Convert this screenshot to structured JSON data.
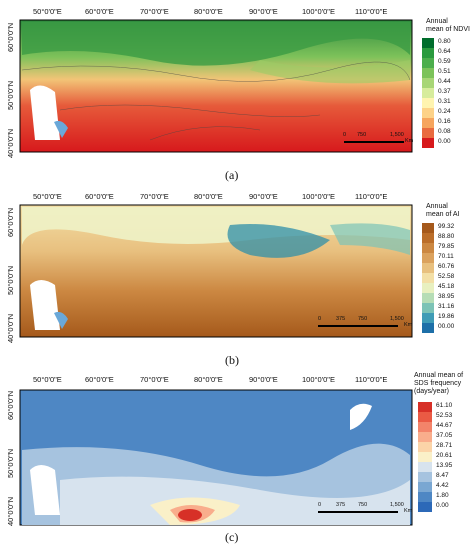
{
  "longitudes": [
    "50°0'0\"E",
    "60°0'0\"E",
    "70°0'0\"E",
    "80°0'0\"E",
    "90°0'0\"E",
    "100°0'0\"E",
    "110°0'0\"E"
  ],
  "latitudes": [
    "60°0'0\"N",
    "50°0'0\"N",
    "40°0'0\"N"
  ],
  "scale": {
    "ticks": [
      "0",
      "375",
      "750",
      "1,500"
    ],
    "unit": "Km",
    "ticks_a": [
      "0",
      "750",
      "1,500"
    ],
    "unit_a": "Km"
  },
  "panels": [
    {
      "id": "a",
      "label": "(a)",
      "legend_title_lines": [
        "Annual",
        "mean of NDVI"
      ],
      "legend_values": [
        "0.80",
        "0.64",
        "0.59",
        "0.51",
        "0.44",
        "0.37",
        "0.31",
        "0.24",
        "0.16",
        "0.08",
        "0.00"
      ],
      "legend_colors": [
        "#006d2c",
        "#2a9a3e",
        "#4cae4c",
        "#7cc35a",
        "#a8d676",
        "#d7ec9c",
        "#fff4b0",
        "#fdd288",
        "#f6a55e",
        "#e96b3f",
        "#d7191c"
      ]
    },
    {
      "id": "b",
      "label": "(b)",
      "legend_title_lines": [
        "Annual",
        "mean of AI"
      ],
      "legend_values": [
        "99.32",
        "88.80",
        "79.85",
        "70.11",
        "60.76",
        "52.58",
        "45.18",
        "38.95",
        "31.16",
        "19.86",
        "00.00"
      ],
      "legend_colors": [
        "#a5591b",
        "#bb6e2a",
        "#cc8842",
        "#dba25e",
        "#e8c07f",
        "#f3dfa6",
        "#e8f0c0",
        "#b6ddb6",
        "#7cc3b6",
        "#3f9cb6",
        "#1d6fa8"
      ]
    },
    {
      "id": "c",
      "label": "(c)",
      "legend_title_lines": [
        "Annual mean of",
        "SDS frequency",
        "(days/year)"
      ],
      "legend_values": [
        "61.10",
        "52.53",
        "44.67",
        "37.05",
        "28.71",
        "20.61",
        "13.95",
        "8.47",
        "4.42",
        "1.80",
        "0.00"
      ],
      "legend_colors": [
        "#d73027",
        "#ea5a44",
        "#f3846a",
        "#f9ad8c",
        "#fbd4a8",
        "#faf0c8",
        "#d7e3ee",
        "#a6c3df",
        "#7aa7d2",
        "#4e87c4",
        "#2c69b8"
      ]
    }
  ]
}
